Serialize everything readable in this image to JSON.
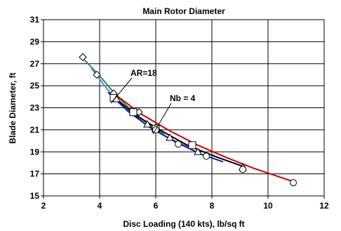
{
  "chart_data": {
    "type": "line",
    "title": "Main Rotor Diameter",
    "xlabel": "Disc Loading (140 kts), lb/sq ft",
    "ylabel": "Blade Diameter, ft",
    "xlim": [
      2,
      12
    ],
    "ylim": [
      15,
      31
    ],
    "xticks": [
      2,
      4,
      6,
      8,
      10,
      12
    ],
    "yticks": [
      15,
      17,
      19,
      21,
      23,
      25,
      27,
      29,
      31
    ],
    "grid": true,
    "legend": "none",
    "series": [
      {
        "color": "#000000",
        "marker": "diamond",
        "x": [
          3.4,
          3.9,
          4.5,
          5.4,
          6.0
        ],
        "y": [
          27.6,
          26.0,
          24.3,
          22.6,
          21.2
        ]
      },
      {
        "color": "#000000",
        "marker": "square",
        "x": [
          4.5,
          5.2,
          6.0,
          7.3
        ],
        "y": [
          23.9,
          22.6,
          21.1,
          19.6
        ]
      },
      {
        "color": "#000000",
        "marker": "triangle",
        "x": [
          4.6,
          5.7,
          6.5,
          7.5,
          9.1
        ],
        "y": [
          23.8,
          21.5,
          20.3,
          19.0,
          17.6
        ]
      },
      {
        "color": "#000000",
        "marker": "circle",
        "x": [
          6.0,
          6.8,
          7.8,
          9.1,
          10.9
        ],
        "y": [
          21.0,
          19.7,
          18.6,
          17.4,
          16.2
        ]
      }
    ],
    "fit_curves": [
      {
        "color": "#2e8b57",
        "x": [
          3.4,
          4.0,
          4.6,
          5.2,
          5.8,
          6.3
        ],
        "y": [
          27.5,
          25.9,
          24.1,
          22.6,
          21.4,
          20.6
        ]
      },
      {
        "color": "#4a90d9",
        "x": [
          3.7,
          4.3,
          5.0,
          5.7,
          6.5,
          7.2
        ],
        "y": [
          26.6,
          24.6,
          22.8,
          21.4,
          20.2,
          19.4
        ]
      },
      {
        "color": "#1a1aa6",
        "x": [
          4.3,
          5.0,
          5.8,
          6.7,
          7.6,
          8.4
        ],
        "y": [
          24.4,
          22.7,
          21.2,
          19.9,
          18.8,
          18.1
        ]
      },
      {
        "color": "#000000",
        "x": [
          4.5,
          5.3,
          6.2,
          7.2,
          8.2,
          9.2
        ],
        "y": [
          24.0,
          22.3,
          20.9,
          19.5,
          18.5,
          17.6
        ]
      },
      {
        "color": "#d40000",
        "x": [
          4.5,
          5.5,
          6.5,
          7.5,
          8.5,
          9.5,
          10.9
        ],
        "y": [
          24.3,
          22.4,
          20.9,
          19.6,
          18.5,
          17.5,
          16.3
        ]
      }
    ],
    "annotations": [
      {
        "text": "AR=18",
        "at": [
          5.1,
          25.9
        ],
        "points_to": [
          4.4,
          23.4
        ]
      },
      {
        "text": "Nb = 4",
        "at": [
          6.5,
          23.6
        ],
        "points_to": [
          5.9,
          20.6
        ]
      }
    ]
  }
}
